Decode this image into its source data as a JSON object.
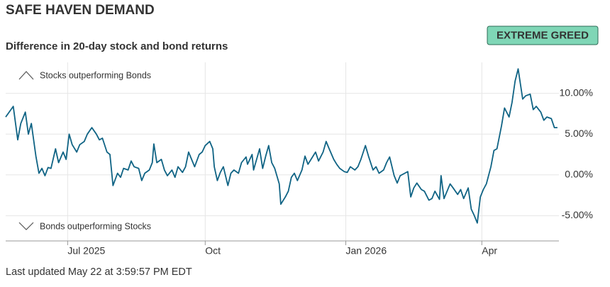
{
  "chart_data": {
    "type": "line",
    "title": "SAFE HAVEN DEMAND",
    "subtitle": "Difference in 20-day stock and bond returns",
    "rating": "EXTREME GREED",
    "annotations": [
      "Stocks outperforming Bonds",
      "Bonds outperforming Stocks"
    ],
    "footer": "Last updated May 22 at 3:59:57 PM EDT",
    "color": "#0f6384",
    "grid": true,
    "x": [
      0,
      5,
      8,
      10,
      13,
      15,
      17,
      20,
      22,
      24,
      26,
      28,
      30,
      33,
      35,
      38,
      40,
      42,
      44,
      47,
      49,
      52,
      54,
      57,
      60,
      62,
      64,
      67,
      69,
      71,
      74,
      76,
      78,
      81,
      83,
      85,
      88,
      90,
      92,
      95,
      97,
      98,
      100,
      103,
      105,
      107,
      110,
      112,
      114,
      117,
      119,
      121,
      123,
      125,
      128,
      130,
      132,
      135,
      137,
      138,
      140,
      142,
      144,
      147,
      149,
      151,
      154,
      156,
      159,
      160,
      163,
      164,
      166,
      168,
      170,
      172,
      174,
      176,
      178,
      181,
      182,
      185,
      187,
      189,
      191,
      193,
      196,
      198,
      200,
      203,
      205,
      207,
      210,
      212,
      214,
      217,
      219,
      221,
      224,
      226,
      228,
      231,
      233,
      235,
      238,
      240,
      243,
      245,
      247,
      250,
      252,
      254,
      257,
      259,
      261,
      264,
      266,
      268,
      270,
      272,
      275,
      277,
      280,
      282,
      284,
      287,
      288,
      290,
      292,
      294,
      296,
      299,
      301,
      303,
      306,
      308,
      310,
      312,
      314,
      316,
      318,
      321,
      323,
      325,
      328,
      330,
      333,
      335,
      337,
      339,
      342,
      344,
      347,
      349,
      351,
      354,
      356,
      358,
      361,
      363,
      365
    ],
    "values": [
      7.1,
      8.4,
      4.3,
      6.3,
      7.7,
      5.0,
      6.3,
      2.3,
      0.2,
      0.8,
      -0.1,
      0.9,
      0.8,
      3.2,
      1.5,
      2.8,
      1.9,
      5.0,
      3.7,
      2.8,
      3.7,
      4.1,
      5.0,
      5.8,
      5.0,
      4.3,
      4.5,
      2.8,
      2.5,
      -1.3,
      0.2,
      -0.3,
      0.8,
      0.6,
      1.7,
      1.0,
      0.8,
      -0.7,
      0.2,
      0.6,
      1.5,
      3.8,
      1.5,
      1.9,
      0.6,
      -0.1,
      0.6,
      -0.3,
      1.0,
      0.3,
      1.0,
      2.8,
      1.9,
      1.0,
      2.5,
      2.8,
      3.6,
      4.1,
      3.2,
      1.0,
      -0.7,
      0.3,
      1.0,
      -1.3,
      0.2,
      0.6,
      0.2,
      1.5,
      2.2,
      1.3,
      2.5,
      0.6,
      1.9,
      3.2,
      0.8,
      2.3,
      3.6,
      1.5,
      0.8,
      -1.1,
      -3.6,
      -2.7,
      -2.0,
      -0.3,
      0.2,
      -0.7,
      0.6,
      2.3,
      1.3,
      2.2,
      2.8,
      1.7,
      2.8,
      4.1,
      3.2,
      1.9,
      1.3,
      0.8,
      0.4,
      0.3,
      1.0,
      0.6,
      1.0,
      1.9,
      3.6,
      2.3,
      0.6,
      1.0,
      0.2,
      0.6,
      1.5,
      2.2,
      -0.1,
      -1.0,
      -0.1,
      0.2,
      0.4,
      -2.7,
      -1.6,
      -1.0,
      -1.8,
      -2.0,
      -3.1,
      -2.9,
      -2.0,
      -3.0,
      -0.1,
      -2.9,
      -2.0,
      -1.1,
      -1.6,
      -2.4,
      -1.8,
      -2.9,
      -1.6,
      -4.2,
      -5.0,
      -5.9,
      -2.7,
      -1.8,
      -1.1,
      1.0,
      3.0,
      3.2,
      6.0,
      8.2,
      7.1,
      8.9,
      11.5,
      13.0,
      9.3,
      9.7,
      9.9,
      8.0,
      8.4,
      7.7,
      6.7,
      7.1,
      6.9,
      5.8,
      5.8
    ],
    "xlim": [
      0,
      366
    ],
    "xticks": [
      {
        "value": 41,
        "label": "Jul 2025"
      },
      {
        "value": 132,
        "label": "Oct"
      },
      {
        "value": 225,
        "label": "Jan 2026"
      },
      {
        "value": 315,
        "label": "Apr"
      }
    ],
    "ylim": [
      -8.1,
      13.8
    ],
    "yticks": [
      {
        "value": -5,
        "label": "-5.00%"
      },
      {
        "value": 0,
        "label": "0.00%"
      },
      {
        "value": 5,
        "label": "5.00%"
      },
      {
        "value": 10,
        "label": "10.00%"
      }
    ]
  }
}
